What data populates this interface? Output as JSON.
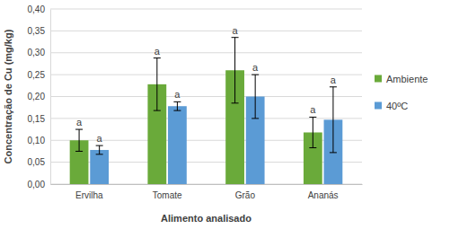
{
  "chart_data": {
    "type": "bar",
    "x_label": "Alimento analisado",
    "y_label": "Concentração de Cu (mg/kg)",
    "categories": [
      "Ervilha",
      "Tomate",
      "Grão",
      "Ananás"
    ],
    "series": [
      {
        "name": "Ambiente",
        "color": "#6aaa3a",
        "values": [
          0.1,
          0.228,
          0.26,
          0.118
        ],
        "errors": [
          0.025,
          0.06,
          0.075,
          0.035
        ],
        "annotations": [
          "a",
          "a",
          "a",
          "a"
        ]
      },
      {
        "name": "40ºC",
        "color": "#5b9bd5",
        "values": [
          0.078,
          0.178,
          0.2,
          0.147
        ],
        "errors": [
          0.01,
          0.01,
          0.05,
          0.075
        ],
        "annotations": [
          "a",
          "a",
          "a",
          "a"
        ]
      }
    ],
    "ylim": [
      0,
      0.4
    ],
    "yticks": [
      {
        "value": 0,
        "label": "0,00"
      },
      {
        "value": 0.05,
        "label": "0,05"
      },
      {
        "value": 0.1,
        "label": "0,10"
      },
      {
        "value": 0.15,
        "label": "0,15"
      },
      {
        "value": 0.2,
        "label": "0,20"
      },
      {
        "value": 0.25,
        "label": "0,25"
      },
      {
        "value": 0.3,
        "label": "0,30"
      },
      {
        "value": 0.35,
        "label": "0,35"
      },
      {
        "value": 0.4,
        "label": "0,40"
      }
    ],
    "grid": true,
    "legend": "right"
  }
}
